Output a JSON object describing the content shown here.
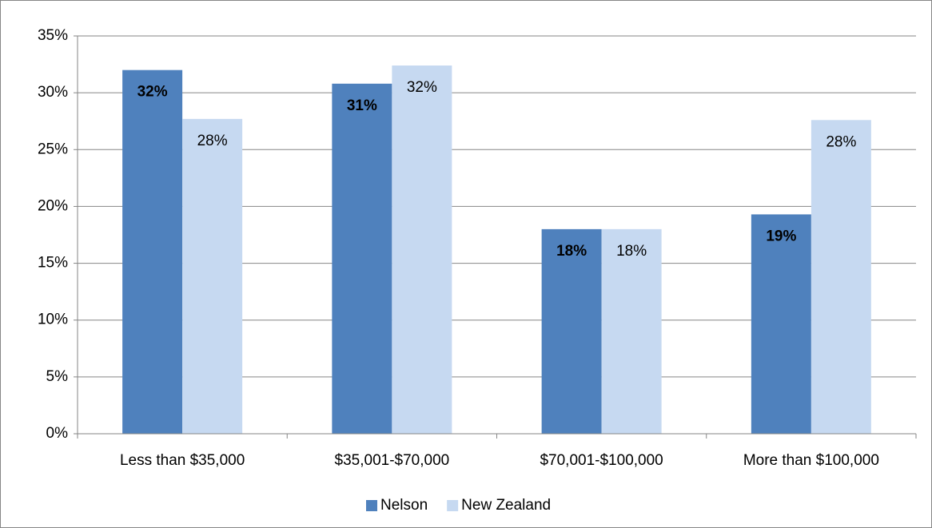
{
  "chart_data": {
    "type": "bar",
    "categories": [
      "Less than $35,000",
      "$35,001-$70,000",
      "$70,001-$100,000",
      "More than $100,000"
    ],
    "series": [
      {
        "name": "Nelson",
        "color": "#4f81bd",
        "values": [
          32.0,
          30.8,
          18.0,
          19.3
        ],
        "value_labels": [
          "32%",
          "31%",
          "18%",
          "19%"
        ]
      },
      {
        "name": "New Zealand",
        "color": "#c6d9f1",
        "values": [
          27.7,
          32.4,
          18.0,
          27.6
        ],
        "value_labels": [
          "28%",
          "32%",
          "18%",
          "28%"
        ]
      }
    ],
    "ylim": [
      0,
      35
    ],
    "yticks": [
      {
        "value": 0,
        "label": "0%"
      },
      {
        "value": 5,
        "label": "5%"
      },
      {
        "value": 10,
        "label": "10%"
      },
      {
        "value": 15,
        "label": "15%"
      },
      {
        "value": 20,
        "label": "20%"
      },
      {
        "value": 25,
        "label": "25%"
      },
      {
        "value": 30,
        "label": "30%"
      },
      {
        "value": 35,
        "label": "35%"
      }
    ],
    "grid": true,
    "legend": "bottom"
  }
}
